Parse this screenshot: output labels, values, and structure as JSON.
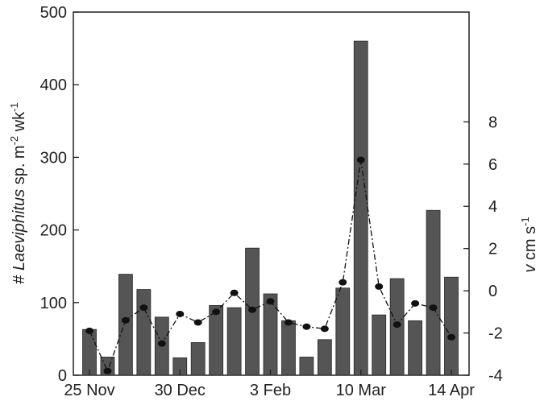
{
  "chart_data": {
    "type": "bar",
    "title": "",
    "xlabel": "",
    "ylabel": {
      "prefix": "# ",
      "italic": "Laeviphitus",
      "suffix": " sp. m",
      "sup1": "-2",
      "mid": " wk",
      "sup2": "-1"
    },
    "y2label": {
      "italic": "v",
      "mid": " cm s",
      "sup": "-1"
    },
    "ylim": [
      0,
      500
    ],
    "y2lim": [
      -4,
      13.2
    ],
    "yticks": [
      "0",
      "100",
      "200",
      "300",
      "400",
      "500"
    ],
    "y2ticks": [
      "-4",
      "-2",
      "0",
      "2",
      "4",
      "6",
      "8"
    ],
    "xtick_labels": [
      "25 Nov",
      "30 Dec",
      "3 Feb",
      "10 Mar",
      "14 Apr"
    ],
    "xtick_positions": [
      0,
      5,
      10,
      15,
      20
    ],
    "series": [
      {
        "type": "bar",
        "values": [
          63,
          25,
          139,
          118,
          80,
          24,
          45,
          96,
          93,
          175,
          112,
          75,
          25,
          49,
          120,
          460,
          83,
          133,
          75,
          227,
          135
        ],
        "color": "#555555"
      },
      {
        "type": "line",
        "axis": "right",
        "style": "dash-dot",
        "values": [
          -1.9,
          -3.8,
          -1.4,
          -0.8,
          -2.5,
          -1.1,
          -1.5,
          -1.0,
          -0.1,
          -0.9,
          -0.5,
          -1.5,
          -1.7,
          -1.8,
          0.4,
          6.2,
          0.2,
          -1.6,
          -0.6,
          -0.8,
          -2.2
        ],
        "color": "#111111"
      }
    ]
  }
}
